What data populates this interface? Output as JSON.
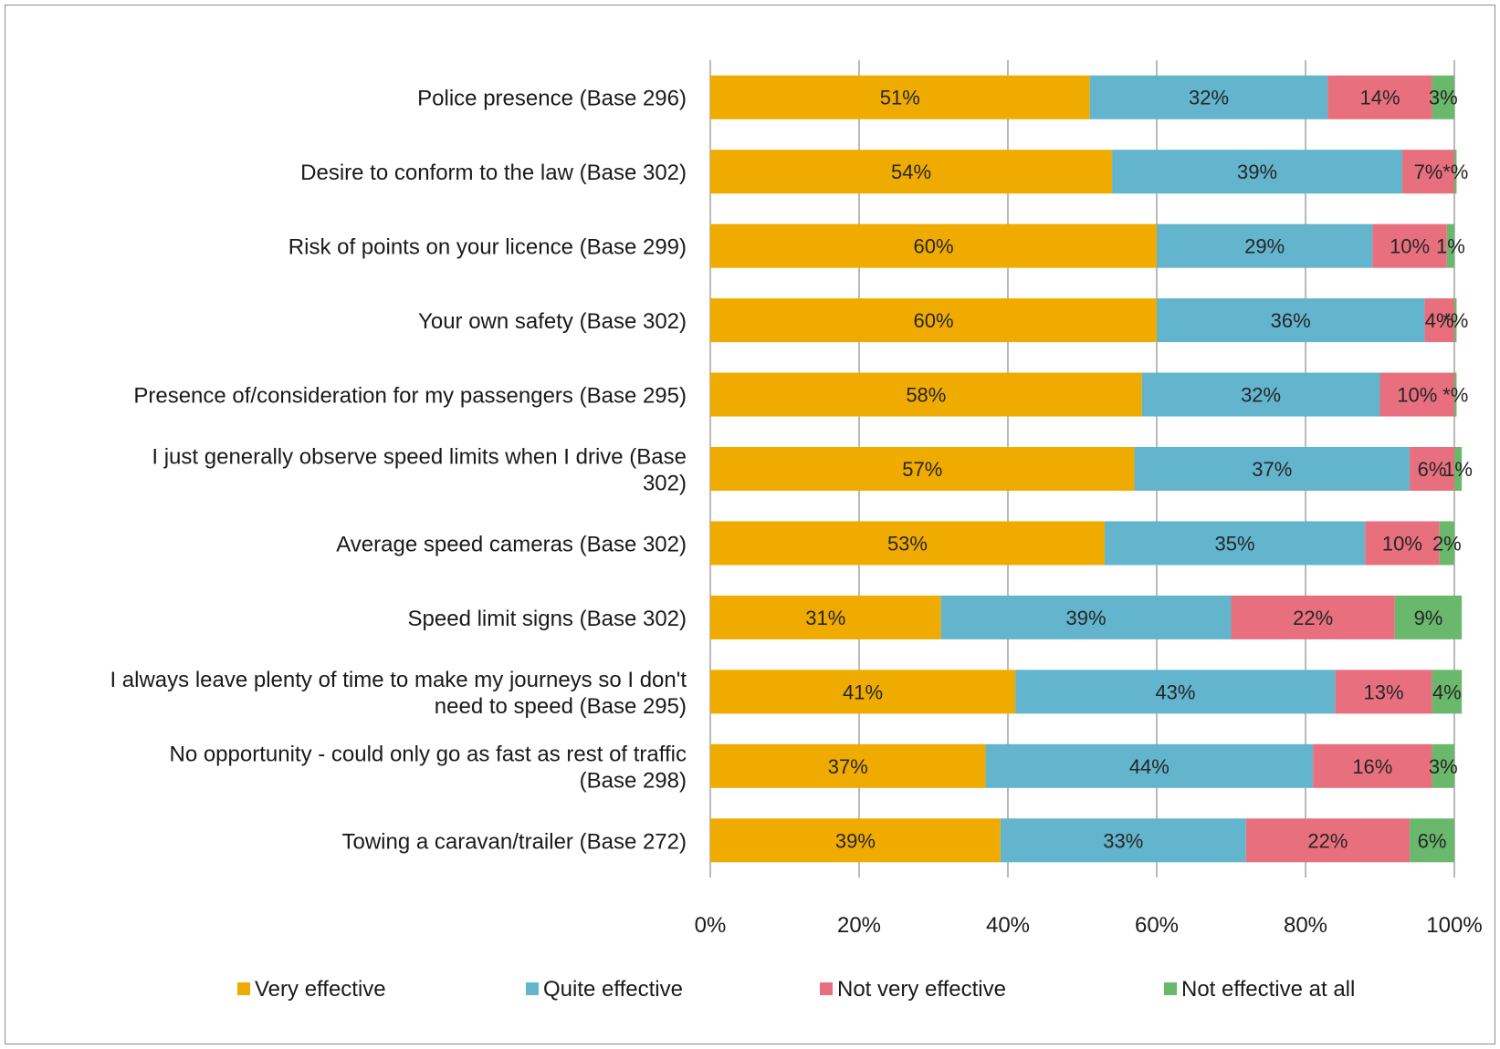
{
  "chart_data": {
    "type": "bar",
    "orientation": "horizontal",
    "stacked": true,
    "title": "",
    "xlabel": "",
    "ylabel": "",
    "xlim": [
      0,
      100
    ],
    "x_ticks": [
      "0%",
      "20%",
      "40%",
      "60%",
      "80%",
      "100%"
    ],
    "grid": "vertical",
    "legend_position": "bottom",
    "categories": [
      "Police presence (Base 296)",
      "Desire to conform to the law (Base 302)",
      "Risk of points on your licence (Base 299)",
      "Your own safety (Base 302)",
      "Presence of/consideration for my passengers (Base 295)",
      "I just generally observe speed limits when I drive (Base 302)",
      "Average speed cameras (Base 302)",
      "Speed limit signs (Base 302)",
      "I always leave plenty of time to make my journeys so I don't need to speed (Base 295)",
      "No opportunity - could only go as fast as rest of traffic (Base 298)",
      "Towing a caravan/trailer (Base 272)"
    ],
    "category_lines": [
      [
        "Police presence (Base 296)"
      ],
      [
        "Desire to conform to the law (Base 302)"
      ],
      [
        "Risk of points on your licence (Base 299)"
      ],
      [
        "Your own safety (Base 302)"
      ],
      [
        "Presence of/consideration for my passengers (Base 295)"
      ],
      [
        "I just generally observe speed limits when I drive (Base",
        "302)"
      ],
      [
        "Average speed cameras (Base 302)"
      ],
      [
        "Speed limit signs (Base 302)"
      ],
      [
        "I always leave plenty of time to make my journeys so I don't",
        "need to speed (Base 295)"
      ],
      [
        "No opportunity - could only go as fast as rest of traffic",
        "(Base 298)"
      ],
      [
        "Towing a caravan/trailer (Base 272)"
      ]
    ],
    "series": [
      {
        "name": "Very effective",
        "color": "#F0AB00",
        "values": [
          51,
          54,
          60,
          60,
          58,
          57,
          53,
          31,
          41,
          37,
          39
        ],
        "labels": [
          "51%",
          "54%",
          "60%",
          "60%",
          "58%",
          "57%",
          "53%",
          "31%",
          "41%",
          "37%",
          "39%"
        ]
      },
      {
        "name": "Quite effective",
        "color": "#62B5CC",
        "values": [
          32,
          39,
          29,
          36,
          32,
          37,
          35,
          39,
          43,
          44,
          33
        ],
        "labels": [
          "32%",
          "39%",
          "29%",
          "36%",
          "32%",
          "37%",
          "35%",
          "39%",
          "43%",
          "44%",
          "33%"
        ]
      },
      {
        "name": "Not very effective",
        "color": "#E8707E",
        "values": [
          14,
          7,
          10,
          4,
          10,
          6,
          10,
          22,
          13,
          16,
          22
        ],
        "labels": [
          "14%",
          "7%",
          "10%",
          "4%",
          "10%",
          "6%",
          "10%",
          "22%",
          "13%",
          "16%",
          "22%"
        ]
      },
      {
        "name": "Not effective at all",
        "color": "#6AB86C",
        "values": [
          3,
          0.3,
          1,
          0.3,
          0.3,
          1,
          2,
          9,
          4,
          3,
          6
        ],
        "labels": [
          "3%",
          "*%",
          "1%",
          "*%",
          "*%",
          "1%",
          "2%",
          "9%",
          "4%",
          "3%",
          "6%"
        ]
      }
    ]
  }
}
